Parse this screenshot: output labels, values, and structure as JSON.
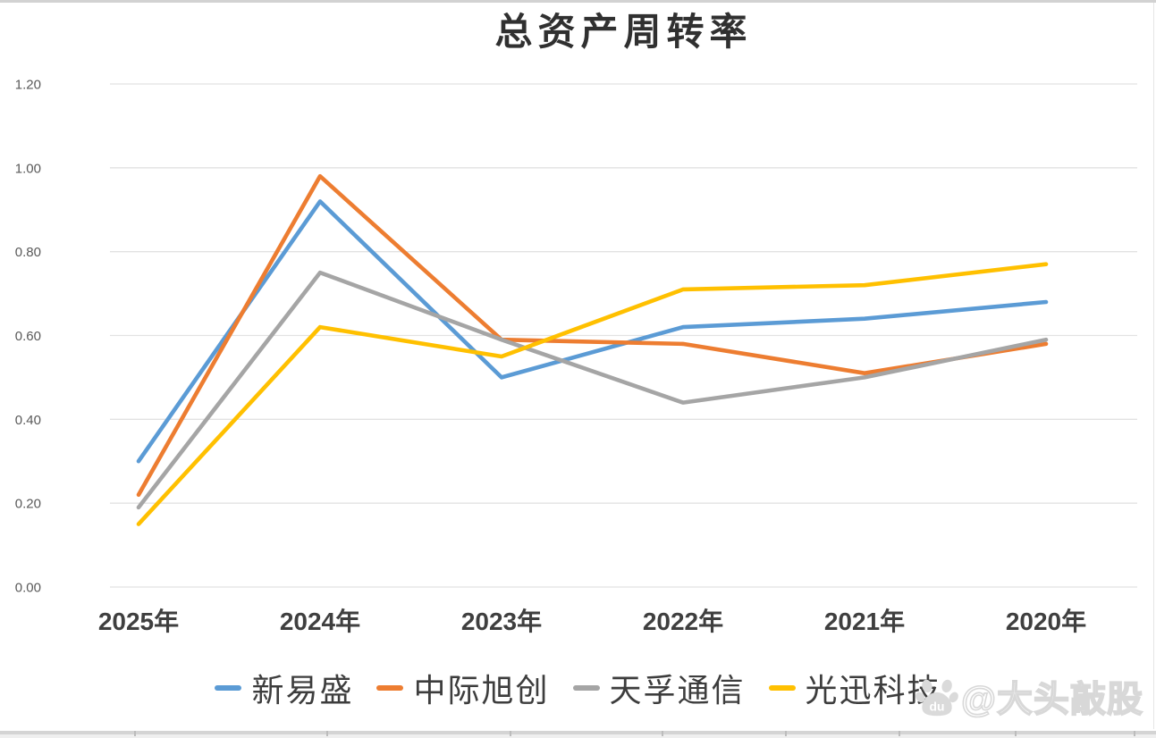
{
  "chart_data": {
    "type": "line",
    "title": "总资产周转率",
    "categories": [
      "2025年",
      "2024年",
      "2023年",
      "2022年",
      "2021年",
      "2020年"
    ],
    "series": [
      {
        "name": "新易盛",
        "color": "#5B9BD5",
        "values": [
          0.3,
          0.92,
          0.5,
          0.62,
          0.64,
          0.68
        ]
      },
      {
        "name": "中际旭创",
        "color": "#ED7D31",
        "values": [
          0.22,
          0.98,
          0.59,
          0.58,
          0.51,
          0.58
        ]
      },
      {
        "name": "天孚通信",
        "color": "#A5A5A5",
        "values": [
          0.19,
          0.75,
          0.59,
          0.44,
          0.5,
          0.59
        ]
      },
      {
        "name": "光迅科技",
        "color": "#FFC000",
        "values": [
          0.15,
          0.62,
          0.55,
          0.71,
          0.72,
          0.77
        ]
      }
    ],
    "y_axis": {
      "min": 0.0,
      "max": 1.2,
      "step": 0.2,
      "tick_labels": [
        "0.00",
        "0.20",
        "0.40",
        "0.60",
        "0.80",
        "1.00",
        "1.20"
      ]
    },
    "grid": true,
    "legend_position": "bottom",
    "gridline_color": "#e2e2e2"
  },
  "watermark": {
    "text": "@大头敲股",
    "icon": "baidu-paw-icon",
    "icon_text": "du"
  }
}
